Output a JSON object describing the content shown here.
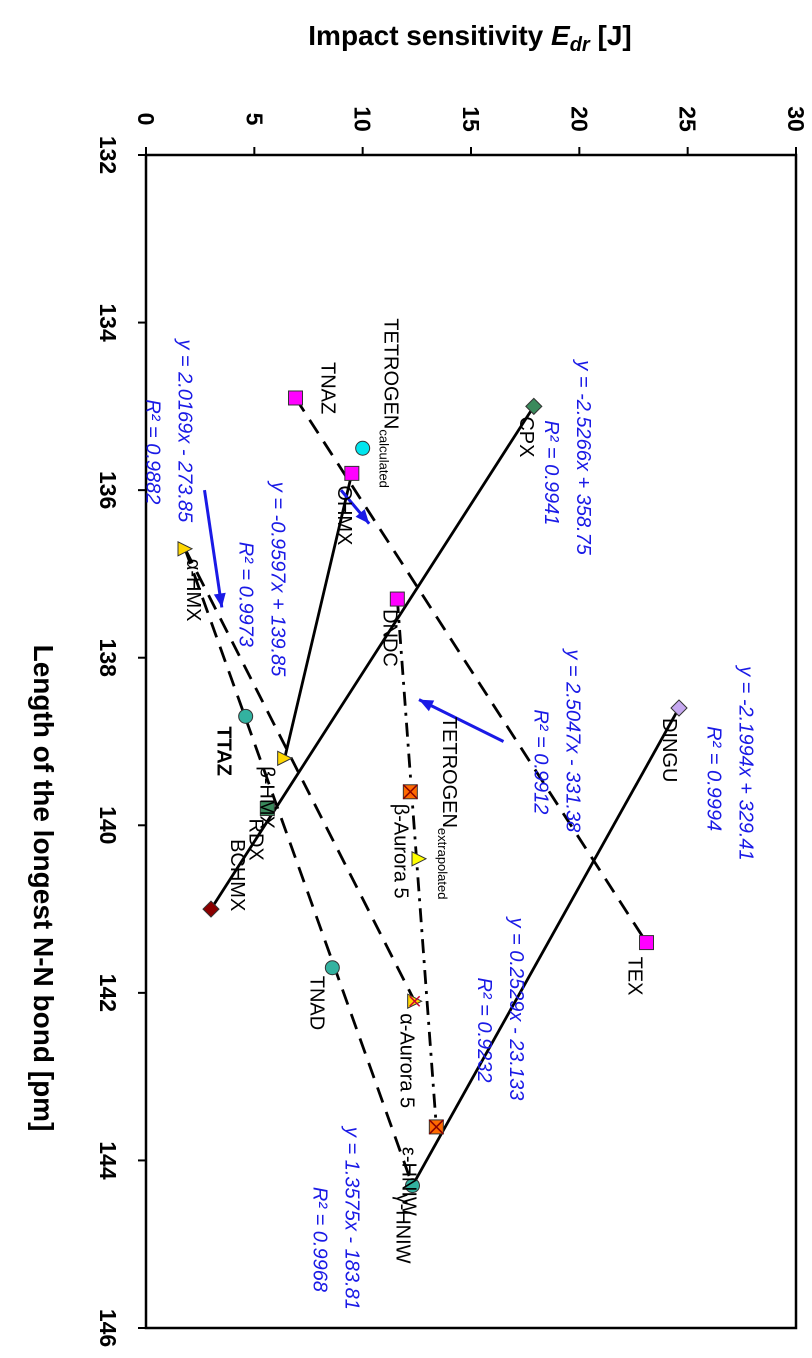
{
  "chart_data": {
    "type": "scatter",
    "title": "",
    "xlabel": "Length of the longest N-N bond [pm]",
    "ylabel_prefix": "Impact sensitivity ",
    "ylabel_var": "E",
    "ylabel_sub": "dr",
    "ylabel_suffix": " [J]",
    "xlim": [
      132,
      146
    ],
    "ylim": [
      0,
      30
    ],
    "x_ticks": [
      "132",
      "134",
      "136",
      "138",
      "140",
      "142",
      "144",
      "146"
    ],
    "y_ticks": [
      "0",
      "5",
      "10",
      "15",
      "20",
      "25",
      "30"
    ],
    "grid": false,
    "legend": "none",
    "points": [
      {
        "id": "cpx",
        "label": "CPX",
        "x": 135.0,
        "y": 17.9,
        "marker": "diamond",
        "color": "#3a8a5c"
      },
      {
        "id": "tetrogen-calc",
        "label": "TETROGEN",
        "sub": "calculated",
        "x": 135.5,
        "y": 10.0,
        "marker": "circle",
        "color": "#00e5ee"
      },
      {
        "id": "tnaz",
        "label": "TNAZ",
        "x": 134.9,
        "y": 6.9,
        "marker": "square",
        "color": "#ff00ff"
      },
      {
        "id": "ohmx",
        "label": "OHMX",
        "x": 135.8,
        "y": 9.5,
        "marker": "square",
        "color": "#ff00ff"
      },
      {
        "id": "alpha-hmx",
        "label": "α-HMX",
        "x": 136.7,
        "y": 1.8,
        "marker": "triangle",
        "color": "#ffd700"
      },
      {
        "id": "dndc",
        "label": "DNDC",
        "x": 137.3,
        "y": 11.6,
        "marker": "square",
        "color": "#ff00ff"
      },
      {
        "id": "ttaz",
        "label": "TTAZ",
        "x": 138.7,
        "y": 4.6,
        "marker": "circle",
        "color": "#33b2a0"
      },
      {
        "id": "beta-hmx",
        "label": "β-HMX",
        "x": 139.2,
        "y": 6.4,
        "marker": "triangle",
        "color": "#ffd700"
      },
      {
        "id": "rdx",
        "label": "RDX",
        "x": 139.8,
        "y": 5.6,
        "marker": "square",
        "color": "#3a8a5c"
      },
      {
        "id": "tetrogen-extra",
        "label": "TETROGEN",
        "sub": "extrapolated",
        "x": 140.4,
        "y": 12.6,
        "marker": "triangle",
        "color": "#ffff00"
      },
      {
        "id": "beta-aurora",
        "label": "β-Aurora 5",
        "x": 139.6,
        "y": 12.2,
        "marker": "star",
        "color": "#ff6a00"
      },
      {
        "id": "alpha-aurora",
        "label": "α-Aurora 5",
        "x": 142.1,
        "y": 12.4,
        "marker": "triangle-star",
        "color": "#ffd700"
      },
      {
        "id": "bchmx",
        "label": "BCHMX",
        "x": 141.0,
        "y": 3.0,
        "marker": "diamond",
        "color": "#8b0000"
      },
      {
        "id": "tnad",
        "label": "TNAD",
        "x": 141.7,
        "y": 8.6,
        "marker": "circle",
        "color": "#33b2a0"
      },
      {
        "id": "epsilon-hniw",
        "label": "ε-HNIW",
        "x": 143.6,
        "y": 13.4,
        "marker": "star",
        "color": "#ff6a00"
      },
      {
        "id": "gamma-hniw",
        "label": "γ-HNIW",
        "x": 144.3,
        "y": 12.3,
        "marker": "circle",
        "color": "#33b2a0"
      },
      {
        "id": "dingu",
        "label": "DINGU",
        "x": 138.6,
        "y": 24.6,
        "marker": "diamond",
        "color": "#c6a8f0"
      },
      {
        "id": "tex",
        "label": "TEX",
        "x": 141.4,
        "y": 23.1,
        "marker": "square",
        "color": "#ff00ff"
      }
    ],
    "lines": [
      {
        "id": "cpx-bchmx",
        "from": "cpx",
        "to": "bchmx",
        "style": "solid"
      },
      {
        "id": "ohmx-beta-hmx",
        "from": "ohmx",
        "to": "beta-hmx",
        "style": "solid"
      },
      {
        "id": "dingu-gamma-hniw",
        "from": "dingu",
        "to": "gamma-hniw",
        "style": "solid"
      },
      {
        "id": "tnaz-tex",
        "from": "tnaz",
        "to": "tex",
        "style": "dashed"
      },
      {
        "id": "alpha-hmx-gamma-hniw",
        "from": "alpha-hmx",
        "to": "gamma-hniw",
        "style": "dashed"
      },
      {
        "id": "alpha-hmx-alpha-aurora",
        "from": "alpha-hmx",
        "to": "alpha-aurora",
        "style": "dashed"
      },
      {
        "id": "dndc-epsilon-hniw",
        "from": "dndc",
        "to": "epsilon-hniw",
        "style": "dashdot"
      }
    ],
    "equations": [
      {
        "id": "eq-cpx",
        "line1": "y = -2.5266x + 358.75",
        "line2": "R² = 0.9941",
        "x": 134.45,
        "y": 19.9
      },
      {
        "id": "eq-tnaz",
        "line1": "y = -0.9597x + 139.85",
        "line2": "R² = 0.9973",
        "x": 135.9,
        "y": 5.8
      },
      {
        "id": "eq-ttaz",
        "line1": "y = 2.0169x - 273.85",
        "line2": "R² = 0.9882",
        "x": 134.2,
        "y": 1.5
      },
      {
        "id": "eq-dingu",
        "line1": "y = -2.1994x + 329.41",
        "line2": "R² = 0.9994",
        "x": 138.1,
        "y": 27.4
      },
      {
        "id": "eq-dndc",
        "line1": "y = 2.5047x - 331.38",
        "line2": "R² = 0.9912",
        "x": 137.9,
        "y": 19.4
      },
      {
        "id": "eq-beta-aurora",
        "line1": "y = 0.2529x - 23.133",
        "line2": "R² = 0.9232",
        "x": 141.1,
        "y": 16.8
      },
      {
        "id": "eq-tnad",
        "line1": "y = 1.3575x - 183.81",
        "line2": "R² = 0.9968",
        "x": 143.6,
        "y": 9.2
      }
    ]
  }
}
